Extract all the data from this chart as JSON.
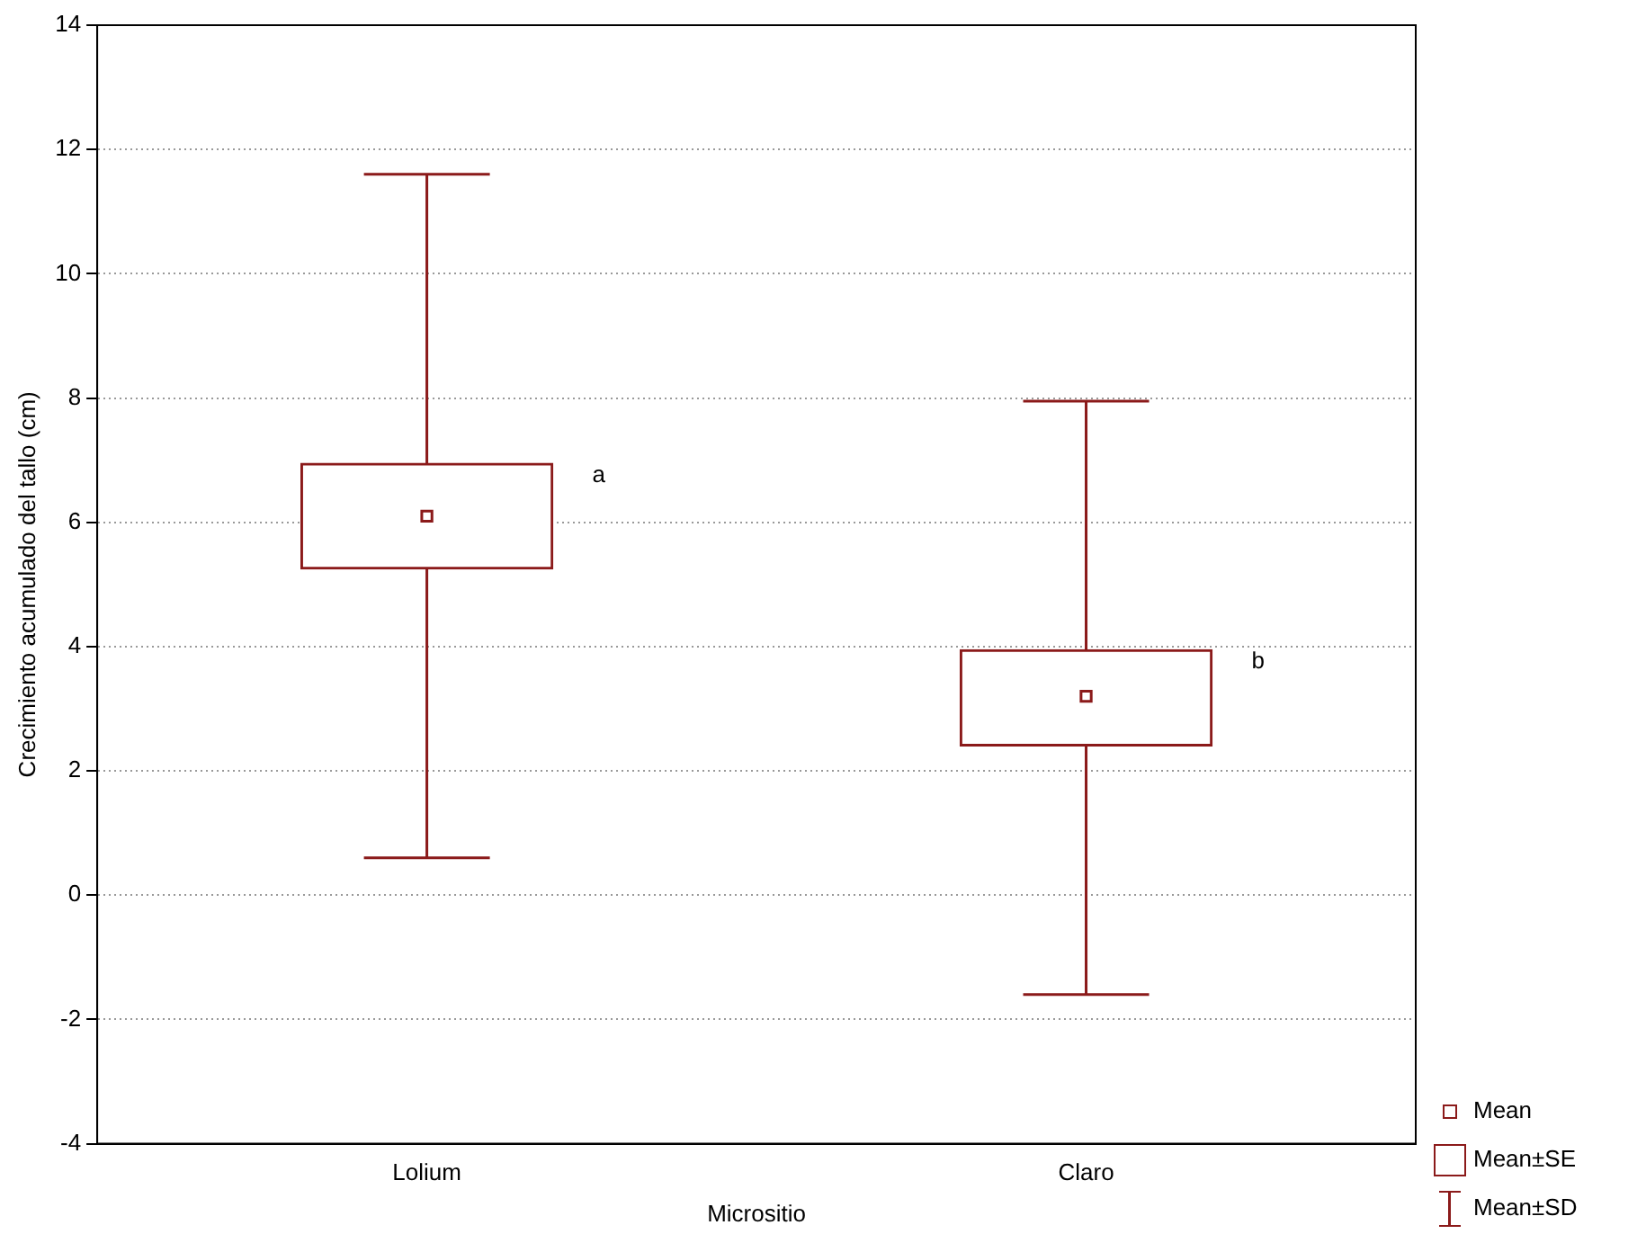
{
  "chart_data": {
    "type": "box",
    "xlabel": "Micrositio",
    "ylabel": "Crecimiento acumulado del tallo (cm)",
    "categories": [
      "Lolium",
      "Claro"
    ],
    "color": "#8b1a1a",
    "boxes": [
      {
        "low": 0.6,
        "q1": 5.25,
        "median": 6.1,
        "q3": 6.95,
        "high": 11.6
      },
      {
        "low": -1.6,
        "q1": 2.4,
        "median": 3.2,
        "q3": 3.95,
        "high": 7.95
      }
    ],
    "ylim": [
      -4,
      14
    ],
    "yticks": [
      -4,
      -2,
      0,
      2,
      4,
      6,
      8,
      10,
      12,
      14
    ],
    "grid": "y",
    "marker": "square",
    "annotations": [
      "a",
      "b",
      "Mean",
      "Mean±SE",
      "Mean±SD"
    ]
  }
}
